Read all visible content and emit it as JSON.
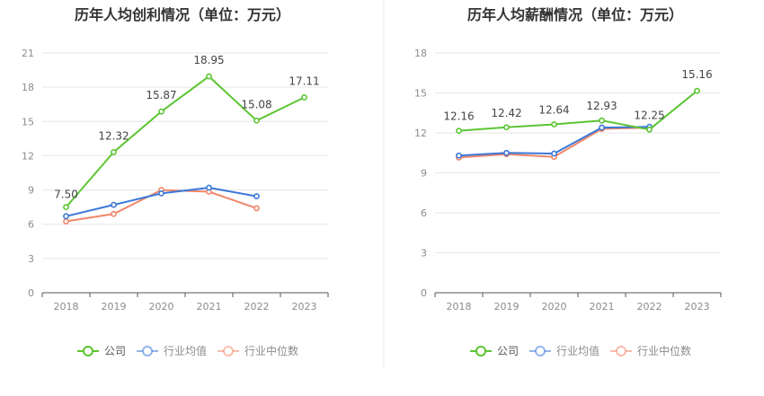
{
  "colors": {
    "company": "#5bc532",
    "industry_avg": "#3b78d8",
    "industry_median": "#f0866a",
    "grid": "#e6e6e6",
    "axis": "#555555",
    "tick_text": "#8c8c8c",
    "label_text": "#444444",
    "title_text": "#333333",
    "divider": "#eeeeee"
  },
  "chart_data": [
    {
      "type": "line",
      "title": "历年人均创利情况（单位：万元）",
      "categories": [
        "2018",
        "2019",
        "2020",
        "2021",
        "2022",
        "2023"
      ],
      "ylim": [
        0,
        21
      ],
      "yticks": [
        "0",
        "3",
        "6",
        "9",
        "12",
        "15",
        "18",
        "21"
      ],
      "series": [
        {
          "name": "公司",
          "key": "company",
          "values": [
            7.5,
            12.32,
            15.87,
            18.95,
            15.08,
            17.11
          ],
          "labels": [
            "7.50",
            "12.32",
            "15.87",
            "18.95",
            "15.08",
            "17.11"
          ]
        },
        {
          "name": "行业均值",
          "key": "industry_avg",
          "values": [
            6.7,
            7.7,
            8.7,
            9.2,
            8.45,
            null
          ]
        },
        {
          "name": "行业中位数",
          "key": "industry_median",
          "values": [
            6.25,
            6.9,
            9.0,
            8.85,
            7.4,
            null
          ]
        }
      ]
    },
    {
      "type": "line",
      "title": "历年人均薪酬情况（单位：万元）",
      "categories": [
        "2018",
        "2019",
        "2020",
        "2021",
        "2022",
        "2023"
      ],
      "ylim": [
        0,
        18
      ],
      "yticks": [
        "0",
        "3",
        "6",
        "9",
        "12",
        "15",
        "18"
      ],
      "series": [
        {
          "name": "公司",
          "key": "company",
          "values": [
            12.16,
            12.42,
            12.64,
            12.93,
            12.25,
            15.16
          ],
          "labels": [
            "12.16",
            "12.42",
            "12.64",
            "12.93",
            "12.25",
            "15.16"
          ]
        },
        {
          "name": "行业均值",
          "key": "industry_avg",
          "values": [
            10.3,
            10.5,
            10.45,
            12.4,
            12.45,
            null
          ]
        },
        {
          "name": "行业中位数",
          "key": "industry_median",
          "values": [
            10.15,
            10.4,
            10.2,
            12.3,
            12.4,
            null
          ]
        }
      ]
    }
  ],
  "legend": [
    {
      "key": "company",
      "label": "公司"
    },
    {
      "key": "industry_avg",
      "label": "行业均值"
    },
    {
      "key": "industry_median",
      "label": "行业中位数"
    }
  ]
}
